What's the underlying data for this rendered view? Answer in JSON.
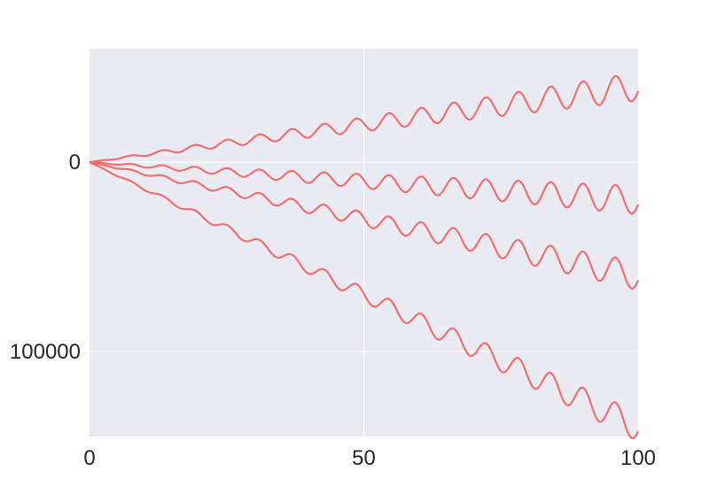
{
  "chart_data": {
    "type": "line",
    "title": "",
    "xlabel": "",
    "ylabel": "",
    "xlim": [
      0,
      100
    ],
    "ylim": [
      -145000,
      60000
    ],
    "x_ticks": [
      {
        "value": 0,
        "label": "0"
      },
      {
        "value": 50,
        "label": "50"
      },
      {
        "value": 100,
        "label": "100"
      }
    ],
    "y_ticks": [
      {
        "value": 0,
        "label": "0"
      },
      {
        "value": -100000,
        "label": "100000"
      }
    ],
    "grid": true,
    "series_color": "#f07070",
    "plot_background": "#eaeaf2",
    "grid_color": "#ffffff",
    "series": [
      {
        "trend_slope": 400,
        "amplitude_per_x": 75,
        "period": 5.9
      },
      {
        "trend_slope": -200,
        "amplitude_per_x": 75,
        "period": 5.9
      },
      {
        "trend_slope": -600,
        "amplitude_per_x": 75,
        "period": 5.9
      },
      {
        "trend_slope": -1400,
        "amplitude_per_x": 75,
        "period": 5.9
      }
    ]
  }
}
